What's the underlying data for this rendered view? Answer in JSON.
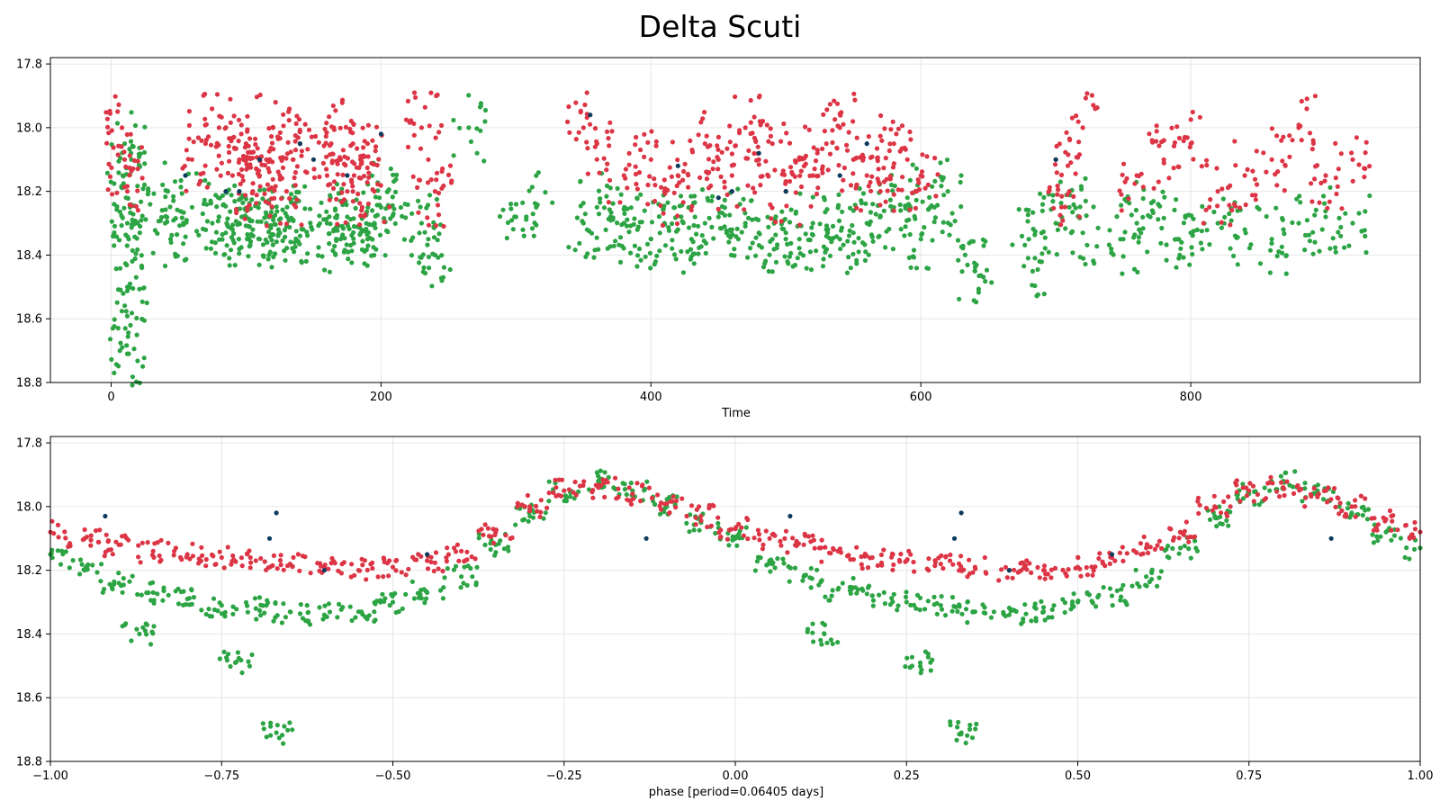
{
  "title": "Delta Scuti",
  "chart_data": [
    {
      "type": "scatter",
      "xlabel": "Time",
      "ylabel": "",
      "xlim": [
        -45,
        970
      ],
      "ylim": [
        18.8,
        17.78
      ],
      "y_inverted": true,
      "grid": true,
      "xticks": [
        0,
        200,
        400,
        600,
        800
      ],
      "xtick_labels": [
        "0",
        "200",
        "400",
        "600",
        "800"
      ],
      "yticks": [
        17.8,
        18.0,
        18.2,
        18.4,
        18.6,
        18.8
      ],
      "ytick_labels": [
        "17.8",
        "18.0",
        "18.2",
        "18.4",
        "18.6",
        "18.8"
      ],
      "series": [
        {
          "color": "#2ca444",
          "values_note": "",
          "x": [
            10,
            11,
            12,
            13,
            14,
            15,
            12,
            13,
            40,
            42,
            44,
            60,
            75,
            80,
            85,
            90,
            95,
            100,
            105,
            110,
            115,
            120,
            125,
            130,
            135,
            140,
            160,
            165,
            170,
            175,
            180,
            185,
            190,
            195,
            200,
            205,
            230,
            235,
            240,
            265,
            300,
            315,
            350,
            360,
            370,
            380,
            390,
            400,
            410,
            420,
            430,
            440,
            450,
            460,
            470,
            480,
            490,
            500,
            510,
            520,
            530,
            540,
            550,
            560,
            570,
            580,
            590,
            600,
            610,
            620,
            640,
            680,
            700,
            710,
            720,
            750,
            760,
            770,
            790,
            800,
            820,
            840,
            860,
            880,
            900,
            920,
            14,
            12,
            640,
            688
          ],
          "y": [
            18.05,
            18.22,
            18.3,
            18.35,
            18.25,
            18.1,
            18.5,
            18.71,
            18.3,
            18.2,
            18.35,
            18.25,
            18.3,
            18.28,
            18.33,
            18.32,
            18.3,
            18.28,
            18.32,
            18.35,
            18.3,
            18.28,
            18.33,
            18.31,
            18.29,
            18.34,
            18.3,
            18.32,
            18.35,
            18.28,
            18.31,
            18.33,
            18.35,
            18.3,
            18.25,
            18.2,
            18.3,
            18.35,
            18.4,
            18.0,
            18.28,
            18.25,
            18.3,
            18.25,
            18.28,
            18.3,
            18.32,
            18.35,
            18.3,
            18.32,
            18.35,
            18.3,
            18.28,
            18.32,
            18.3,
            18.33,
            18.35,
            18.33,
            18.35,
            18.3,
            18.32,
            18.35,
            18.33,
            18.3,
            18.28,
            18.25,
            18.22,
            18.35,
            18.25,
            18.2,
            18.45,
            18.35,
            18.3,
            18.25,
            18.33,
            18.35,
            18.3,
            18.28,
            18.35,
            18.33,
            18.3,
            18.32,
            18.35,
            18.3,
            18.28,
            18.3,
            18.49,
            18.71,
            18.45,
            18.42
          ]
        },
        {
          "color": "#dc3545",
          "x": [
            8,
            10,
            12,
            60,
            70,
            80,
            90,
            95,
            100,
            105,
            110,
            115,
            120,
            125,
            130,
            135,
            140,
            160,
            165,
            170,
            175,
            180,
            185,
            190,
            195,
            230,
            235,
            240,
            350,
            360,
            380,
            400,
            410,
            420,
            440,
            450,
            460,
            470,
            480,
            490,
            500,
            510,
            520,
            530,
            540,
            550,
            560,
            570,
            580,
            590,
            600,
            700,
            710,
            720,
            760,
            780,
            800,
            820,
            840,
            860,
            880,
            900,
            920
          ],
          "y": [
            18.0,
            18.1,
            18.2,
            18.1,
            18.05,
            18.0,
            18.15,
            18.1,
            18.05,
            18.2,
            18.15,
            18.1,
            18.0,
            18.15,
            18.2,
            18.1,
            18.05,
            18.15,
            18.0,
            18.1,
            18.2,
            18.15,
            18.1,
            18.05,
            18.2,
            18.0,
            18.1,
            18.2,
            18.0,
            18.05,
            18.15,
            18.1,
            18.2,
            18.15,
            18.05,
            18.1,
            18.15,
            18.0,
            18.1,
            18.05,
            18.2,
            18.1,
            18.15,
            18.05,
            18.0,
            18.1,
            18.15,
            18.2,
            18.05,
            18.1,
            18.15,
            18.1,
            18.2,
            18.0,
            18.15,
            18.1,
            18.05,
            18.2,
            18.15,
            18.1,
            18.0,
            18.15,
            18.1
          ]
        },
        {
          "color": "#0d3b5e",
          "x": [
            55,
            85,
            95,
            110,
            140,
            150,
            175,
            200,
            355,
            420,
            450,
            460,
            480,
            500,
            540,
            560,
            700
          ],
          "y": [
            18.15,
            18.2,
            18.2,
            18.1,
            18.05,
            18.1,
            18.15,
            18.02,
            17.96,
            18.12,
            18.22,
            18.2,
            18.08,
            18.2,
            18.15,
            18.05,
            18.1
          ]
        }
      ]
    },
    {
      "type": "scatter",
      "xlabel": "phase [period=0.06405 days]",
      "ylabel": "",
      "xlim": [
        -1.0,
        1.0
      ],
      "ylim": [
        18.8,
        17.78
      ],
      "y_inverted": true,
      "grid": true,
      "xticks": [
        -1.0,
        -0.75,
        -0.5,
        -0.25,
        0.0,
        0.25,
        0.5,
        0.75,
        1.0
      ],
      "xtick_labels": [
        "−1.00",
        "−0.75",
        "−0.50",
        "−0.25",
        "0.00",
        "0.25",
        "0.50",
        "0.75",
        "1.00"
      ],
      "yticks": [
        17.8,
        18.0,
        18.2,
        18.4,
        18.6,
        18.8
      ],
      "ytick_labels": [
        "17.8",
        "18.0",
        "18.2",
        "18.4",
        "18.6",
        "18.8"
      ],
      "series": [
        {
          "color": "#2ca444",
          "x": [
            -1.0,
            -0.95,
            -0.9,
            -0.85,
            -0.8,
            -0.75,
            -0.7,
            -0.65,
            -0.6,
            -0.55,
            -0.5,
            -0.45,
            -0.4,
            -0.35,
            -0.3,
            -0.25,
            -0.2,
            -0.15,
            -0.1,
            -0.05,
            0.0,
            0.05,
            0.1,
            0.15,
            0.2,
            0.25,
            0.3,
            0.35,
            0.4,
            0.45,
            0.5,
            0.55,
            0.6,
            0.65,
            0.7,
            0.75,
            0.8,
            0.85,
            0.9,
            0.95,
            1.0,
            -0.73,
            0.27,
            -0.67,
            0.33,
            -0.87,
            0.13
          ],
          "y": [
            18.15,
            18.2,
            18.24,
            18.27,
            18.29,
            18.31,
            18.32,
            18.33,
            18.34,
            18.33,
            18.3,
            18.27,
            18.22,
            18.12,
            18.03,
            17.95,
            17.92,
            17.95,
            18.0,
            18.05,
            18.1,
            18.17,
            18.22,
            18.26,
            18.28,
            18.3,
            18.31,
            18.33,
            18.34,
            18.33,
            18.3,
            18.28,
            18.22,
            18.13,
            18.03,
            17.96,
            17.92,
            17.95,
            18.02,
            18.08,
            18.13,
            18.49,
            18.49,
            18.71,
            18.71,
            18.4,
            18.4
          ]
        },
        {
          "color": "#dc3545",
          "x": [
            -1.0,
            -0.95,
            -0.9,
            -0.85,
            -0.8,
            -0.75,
            -0.7,
            -0.65,
            -0.6,
            -0.55,
            -0.5,
            -0.45,
            -0.4,
            -0.35,
            -0.3,
            -0.25,
            -0.2,
            -0.15,
            -0.1,
            -0.05,
            0.0,
            0.05,
            0.1,
            0.15,
            0.2,
            0.25,
            0.3,
            0.35,
            0.4,
            0.45,
            0.5,
            0.55,
            0.6,
            0.65,
            0.7,
            0.75,
            0.8,
            0.85,
            0.9,
            0.95,
            1.0
          ],
          "y": [
            18.08,
            18.1,
            18.12,
            18.14,
            18.15,
            18.16,
            18.17,
            18.18,
            18.19,
            18.2,
            18.19,
            18.17,
            18.14,
            18.08,
            18.0,
            17.95,
            17.94,
            17.96,
            17.99,
            18.03,
            18.07,
            18.1,
            18.12,
            18.14,
            18.16,
            18.17,
            18.18,
            18.19,
            18.2,
            18.2,
            18.19,
            18.16,
            18.13,
            18.08,
            18.0,
            17.95,
            17.94,
            17.97,
            18.0,
            18.04,
            18.08
          ]
        },
        {
          "color": "#0d3b5e",
          "x": [
            -0.92,
            -0.67,
            -0.68,
            -0.45,
            -0.6,
            -0.13,
            0.08,
            0.33,
            0.32,
            0.55,
            0.4,
            0.87
          ],
          "y": [
            18.03,
            18.02,
            18.1,
            18.15,
            18.2,
            18.1,
            18.03,
            18.02,
            18.1,
            18.15,
            18.2,
            18.1
          ]
        }
      ]
    }
  ]
}
